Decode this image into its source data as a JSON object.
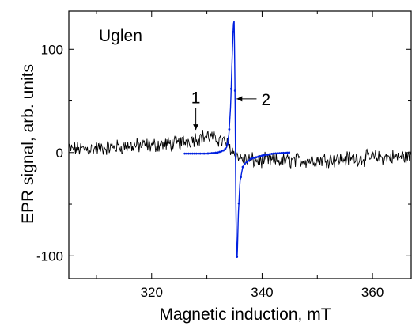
{
  "chart_data": {
    "type": "line",
    "panel_label": "Uglen",
    "xlabel": "Magnetic induction, mT",
    "ylabel": "EPR signal, arb. units",
    "xlim": [
      305,
      367
    ],
    "ylim": [
      -122,
      137
    ],
    "x_ticks": [
      320,
      340,
      360
    ],
    "y_ticks": [
      -100,
      0,
      100
    ],
    "grid": false,
    "series": [
      {
        "id": "1",
        "color": "#000000",
        "marker": "none",
        "x_range": [
          305,
          367
        ],
        "points": [
          [
            305,
            3
          ],
          [
            310,
            4
          ],
          [
            315,
            6
          ],
          [
            320,
            7
          ],
          [
            325,
            9
          ],
          [
            328,
            14
          ],
          [
            330,
            16
          ],
          [
            332,
            13
          ],
          [
            333.5,
            9
          ],
          [
            334.5,
            3
          ],
          [
            335.5,
            -4
          ],
          [
            337,
            -7
          ],
          [
            340,
            -8
          ],
          [
            345,
            -8
          ],
          [
            350,
            -7
          ],
          [
            355,
            -6
          ],
          [
            360,
            -5
          ],
          [
            367,
            -4
          ]
        ],
        "noise_amplitude": 6
      },
      {
        "id": "2",
        "color": "#0020e0",
        "marker": "dots",
        "points": [
          [
            326,
            -1
          ],
          [
            330,
            -1
          ],
          [
            332,
            0
          ],
          [
            333,
            2
          ],
          [
            333.6,
            5
          ],
          [
            334.0,
            18
          ],
          [
            334.3,
            45
          ],
          [
            334.6,
            95
          ],
          [
            334.8,
            124
          ],
          [
            334.95,
            128
          ],
          [
            335.1,
            60
          ],
          [
            335.25,
            -50
          ],
          [
            335.4,
            -100
          ],
          [
            335.5,
            -102
          ],
          [
            335.7,
            -60
          ],
          [
            336.0,
            -28
          ],
          [
            336.5,
            -14
          ],
          [
            337,
            -10
          ],
          [
            338,
            -6
          ],
          [
            340,
            -3
          ],
          [
            342,
            -1
          ],
          [
            345,
            0
          ]
        ]
      }
    ],
    "annotations": [
      {
        "text": "1",
        "arrow_tail": [
          328,
          43
        ],
        "arrow_head": [
          328,
          22
        ]
      },
      {
        "text": "2",
        "arrow_tail": [
          339,
          52
        ],
        "arrow_head": [
          335.4,
          52
        ]
      }
    ]
  }
}
